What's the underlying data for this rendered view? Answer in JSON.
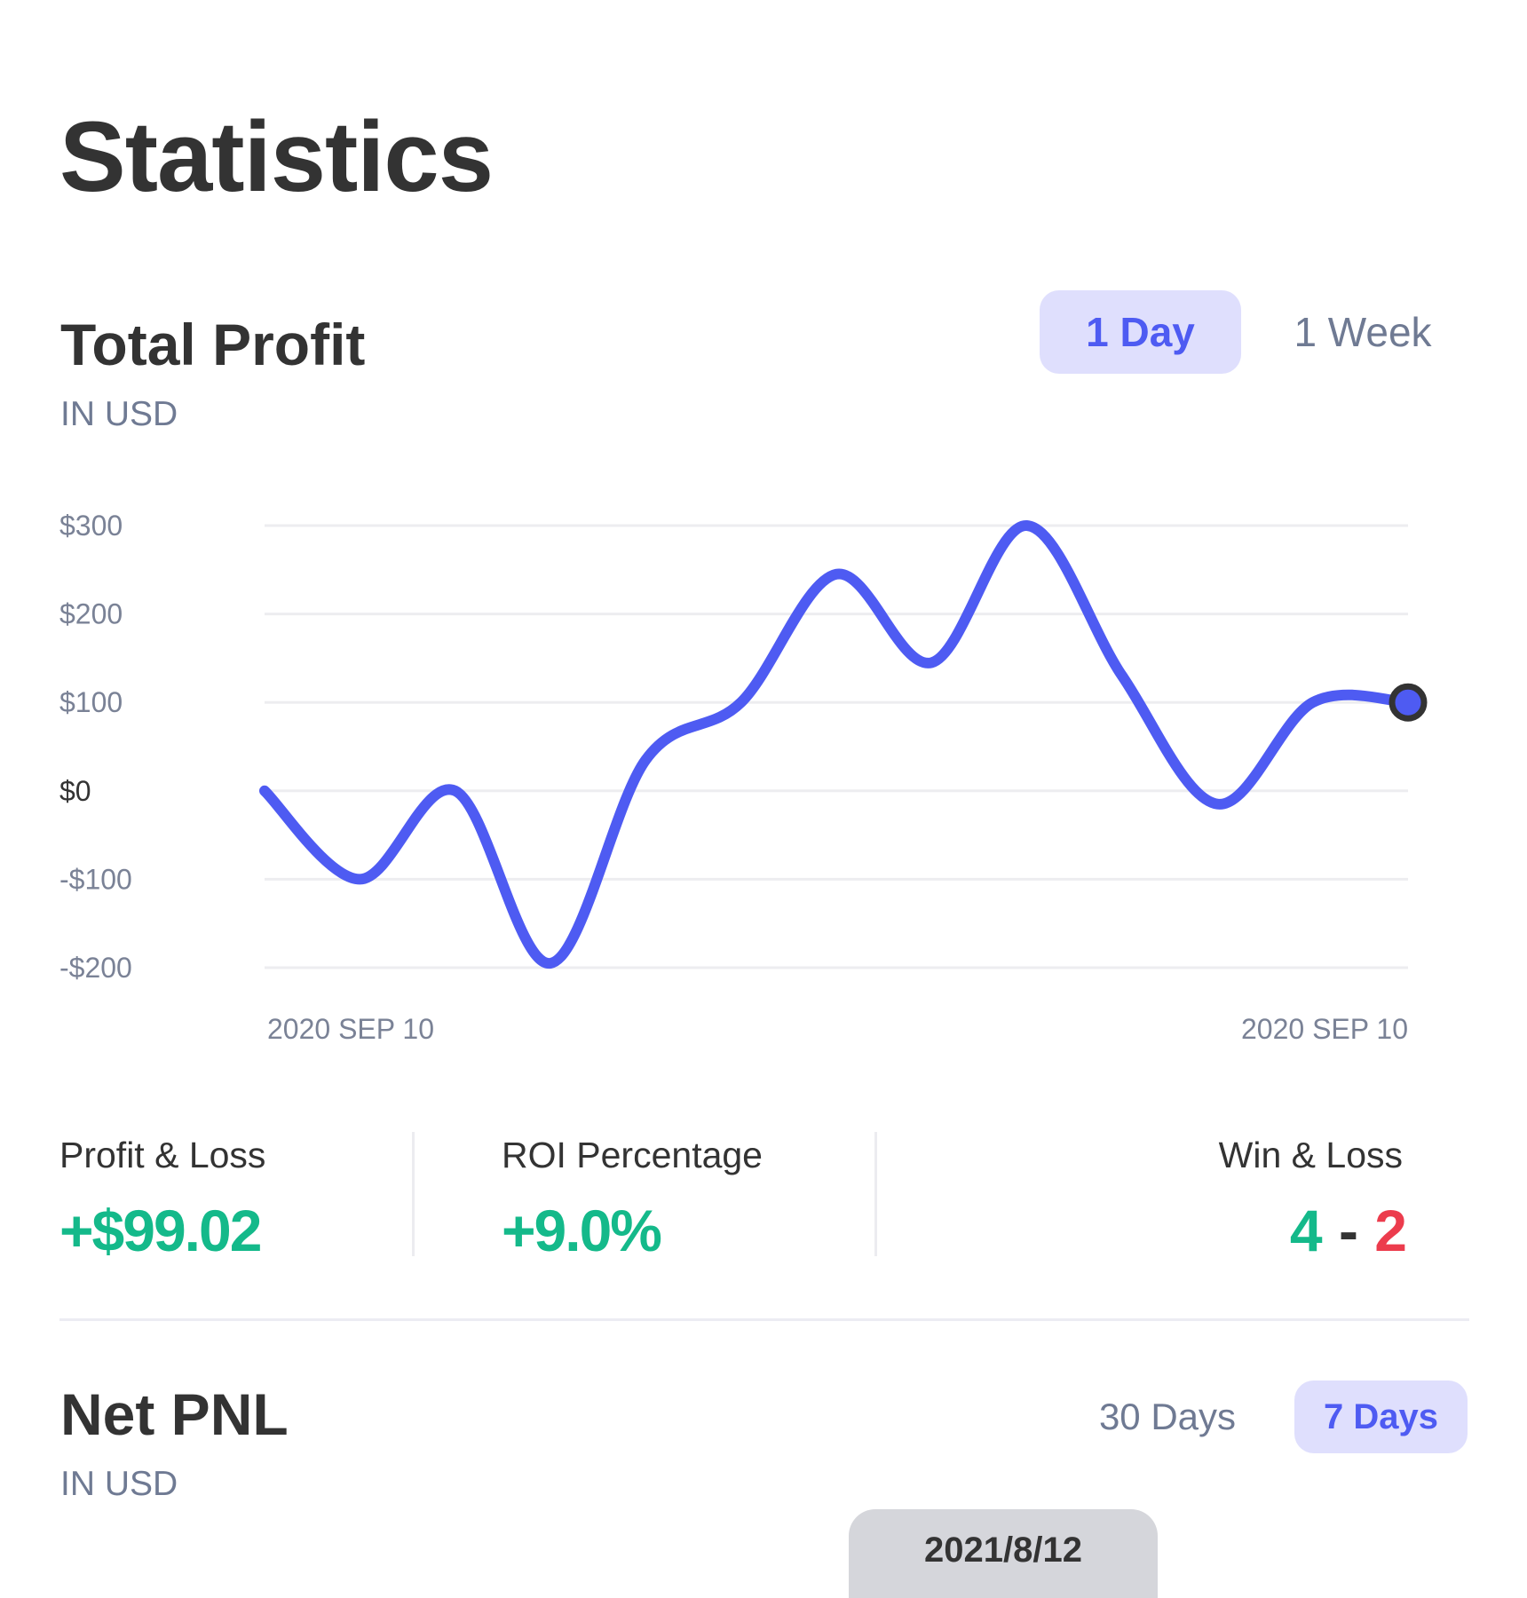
{
  "page": {
    "title": "Statistics"
  },
  "total_profit": {
    "title": "Total Profit",
    "subtitle": "IN USD",
    "toggles": [
      {
        "label": "1 Day",
        "active": true
      },
      {
        "label": "1 Week",
        "active": false
      }
    ]
  },
  "stats": {
    "profit_loss": {
      "label": "Profit & Loss",
      "value": "+$99.02"
    },
    "roi": {
      "label": "ROI Percentage",
      "value": "+9.0%"
    },
    "win_loss": {
      "label": "Win & Loss",
      "wins": "4",
      "separator": "-",
      "losses": "2"
    }
  },
  "net_pnl": {
    "title": "Net PNL",
    "subtitle": "IN USD",
    "toggles": [
      {
        "label": "30 Days",
        "active": false
      },
      {
        "label": "7 Days",
        "active": true
      }
    ],
    "tooltip_date": "2021/8/12"
  },
  "colors": {
    "line": "#4e5bf2",
    "positive": "#14b98a",
    "negative": "#ec3c4d",
    "toggle_active_bg": "#dfdffd"
  },
  "chart_data": {
    "type": "line",
    "y_tick_labels": [
      "$300",
      "$200",
      "$100",
      "$0",
      "-$100",
      "-$200"
    ],
    "y_tick_values": [
      300,
      200,
      100,
      0,
      -100,
      -200
    ],
    "ylim": [
      -200,
      300
    ],
    "x_tick_labels": [
      "2020 SEP 10",
      "2020 SEP 10"
    ],
    "x": [
      0,
      1,
      2,
      3,
      4,
      5,
      6,
      7,
      8,
      9,
      10,
      11,
      12
    ],
    "values": [
      0,
      -100,
      0,
      -195,
      35,
      100,
      245,
      145,
      300,
      130,
      -15,
      100,
      100
    ],
    "grid": true,
    "marker_last_point": true
  }
}
